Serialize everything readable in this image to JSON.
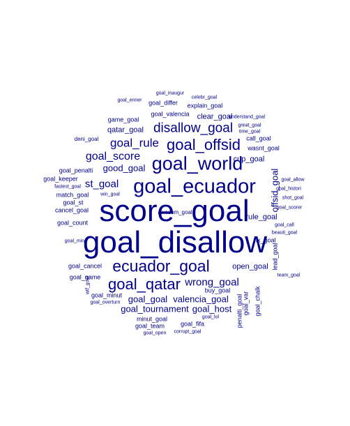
{
  "color": "#00008b",
  "words": [
    {
      "text": "goal_disallow",
      "orientation": "horizontal"
    },
    {
      "text": "score_goal",
      "orientation": "horizontal"
    },
    {
      "text": "goal_ecuador",
      "orientation": "horizontal"
    },
    {
      "text": "goal_world",
      "orientation": "horizontal"
    },
    {
      "text": "ecuador_goal",
      "orientation": "horizontal"
    },
    {
      "text": "goal_offsid",
      "orientation": "horizontal"
    },
    {
      "text": "goal_qatar",
      "orientation": "horizontal"
    },
    {
      "text": "disallow_goal",
      "orientation": "horizontal"
    },
    {
      "text": "goal_rule",
      "orientation": "horizontal"
    },
    {
      "text": "goal_score",
      "orientation": "horizontal"
    },
    {
      "text": "st_goal",
      "orientation": "horizontal"
    },
    {
      "text": "wrong_goal",
      "orientation": "horizontal"
    },
    {
      "text": "goal_goal",
      "orientation": "horizontal"
    },
    {
      "text": "valencia_goal",
      "orientation": "horizontal"
    },
    {
      "text": "goal_tournament",
      "orientation": "horizontal"
    },
    {
      "text": "goal_host",
      "orientation": "horizontal"
    },
    {
      "text": "good_goal",
      "orientation": "horizontal"
    },
    {
      "text": "cup_goal",
      "orientation": "horizontal"
    },
    {
      "text": "open_goal",
      "orientation": "horizontal"
    },
    {
      "text": "rule_goal",
      "orientation": "horizontal"
    },
    {
      "text": "offsid_goal",
      "orientation": "vertical"
    },
    {
      "text": "clear_goal",
      "orientation": "horizontal"
    },
    {
      "text": "qatar_goal",
      "orientation": "horizontal"
    },
    {
      "text": "explain_goal",
      "orientation": "horizontal"
    },
    {
      "text": "goal_valencia",
      "orientation": "horizontal"
    },
    {
      "text": "minut_goal",
      "orientation": "horizontal"
    },
    {
      "text": "goal_fifa",
      "orientation": "horizontal"
    },
    {
      "text": "match_goal",
      "orientation": "horizontal"
    },
    {
      "text": "cancel_goal",
      "orientation": "horizontal"
    },
    {
      "text": "goal_cancel",
      "orientation": "horizontal"
    },
    {
      "text": "goal_game",
      "orientation": "horizontal"
    },
    {
      "text": "goal_team",
      "orientation": "horizontal"
    },
    {
      "text": "buy_goal",
      "orientation": "horizontal"
    },
    {
      "text": "goal_var",
      "orientation": "vertical"
    },
    {
      "text": "penalti_goal",
      "orientation": "vertical"
    },
    {
      "text": "goal_chalk",
      "orientation": "vertical"
    },
    {
      "text": "lead_goal",
      "orientation": "vertical"
    },
    {
      "text": "fix_goal",
      "orientation": "horizontal"
    },
    {
      "text": "goal_count",
      "orientation": "horizontal"
    },
    {
      "text": "goal_penalti",
      "orientation": "horizontal"
    },
    {
      "text": "goal_st",
      "orientation": "horizontal"
    },
    {
      "text": "game_goal",
      "orientation": "horizontal"
    },
    {
      "text": "goal_differ",
      "orientation": "horizontal"
    },
    {
      "text": "wasnt_goal",
      "orientation": "horizontal"
    },
    {
      "text": "call_goal",
      "orientation": "horizontal"
    },
    {
      "text": "goal_minut",
      "orientation": "horizontal"
    },
    {
      "text": "goal_keeper",
      "orientation": "horizontal"
    },
    {
      "text": "deni_goal",
      "orientation": "horizontal"
    },
    {
      "text": "goal_enner",
      "orientation": "horizontal"
    },
    {
      "text": "goal_inaugur",
      "orientation": "horizontal"
    },
    {
      "text": "celebr_goal",
      "orientation": "horizontal"
    },
    {
      "text": "understand_goal",
      "orientation": "horizontal"
    },
    {
      "text": "great_goal",
      "orientation": "horizontal"
    },
    {
      "text": "time_goal",
      "orientation": "horizontal"
    },
    {
      "text": "goal_allow",
      "orientation": "horizontal"
    },
    {
      "text": "goal_histori",
      "orientation": "horizontal"
    },
    {
      "text": "shot_goal",
      "orientation": "horizontal"
    },
    {
      "text": "goal_scorer",
      "orientation": "horizontal"
    },
    {
      "text": "goal_call",
      "orientation": "horizontal"
    },
    {
      "text": "beauti_goal",
      "orientation": "horizontal"
    },
    {
      "text": "team_goal",
      "orientation": "horizontal"
    },
    {
      "text": "fastest_goal",
      "orientation": "horizontal"
    },
    {
      "text": "win_goal",
      "orientation": "horizontal"
    },
    {
      "text": "goal_min",
      "orientation": "horizontal"
    },
    {
      "text": "wtf_goal",
      "orientation": "vertical"
    },
    {
      "text": "goal_overturn",
      "orientation": "horizontal"
    },
    {
      "text": "goal_lol",
      "orientation": "horizontal"
    },
    {
      "text": "corrupt_goal",
      "orientation": "horizontal"
    },
    {
      "text": "goal_open",
      "orientation": "horizontal"
    },
    {
      "text": "awesom_goal",
      "orientation": "horizontal"
    }
  ]
}
